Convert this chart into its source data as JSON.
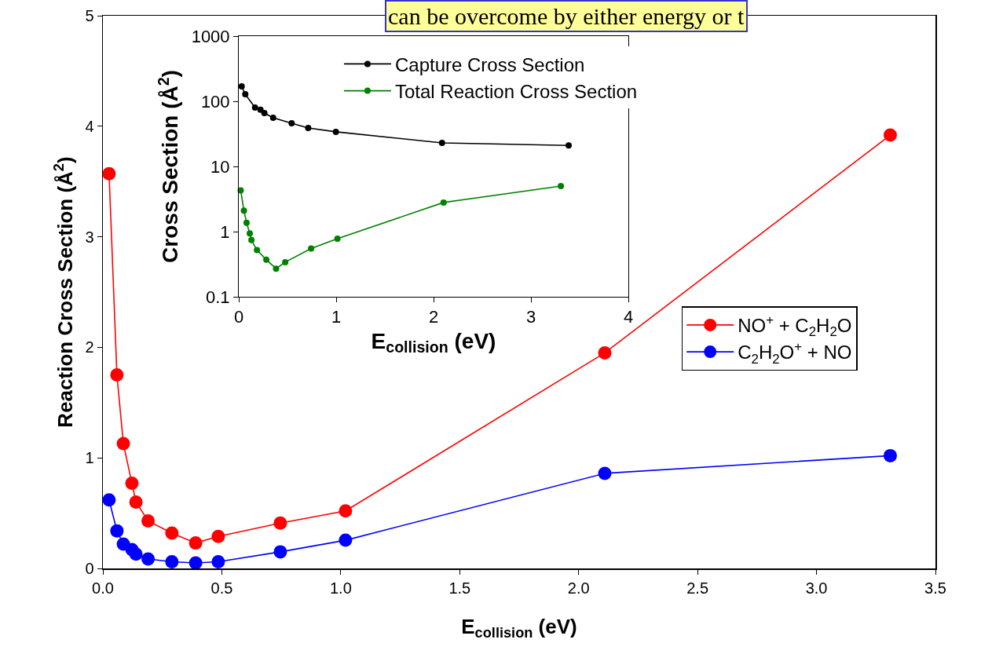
{
  "chart_data": [
    {
      "type": "line",
      "xlabel": "E$_{collision}$ (eV)",
      "ylabel": "Reaction Cross Section (Å$^{2}$)",
      "xlim": [
        0,
        3.5
      ],
      "xticks": [
        {
          "value": 0,
          "label": "0.0"
        },
        {
          "value": 0.5,
          "label": "0.5"
        },
        {
          "value": 1,
          "label": "1.0"
        },
        {
          "value": 1.5,
          "label": "1.5"
        },
        {
          "value": 2,
          "label": "2.0"
        },
        {
          "value": 2.5,
          "label": "2.5"
        },
        {
          "value": 3,
          "label": "3.0"
        },
        {
          "value": 3.5,
          "label": "3.5"
        }
      ],
      "ylim": [
        0,
        5
      ],
      "yticks": [
        0,
        1,
        2,
        3,
        4,
        5
      ],
      "grid": false,
      "legend": "right",
      "marker": "circle",
      "line_style": "solid",
      "annotations": [
        "can be overcome by either energy or t"
      ],
      "series": [
        {
          "name": "NO$^{+}$ + C$_{2}$H$_{2}$O",
          "color": "#ff0000",
          "x": [
            0.026,
            0.059,
            0.086,
            0.122,
            0.139,
            0.19,
            0.29,
            0.39,
            0.485,
            0.746,
            1.02,
            2.11,
            3.31
          ],
          "values": [
            3.57,
            1.75,
            1.13,
            0.77,
            0.6,
            0.43,
            0.32,
            0.23,
            0.29,
            0.41,
            0.52,
            1.95,
            3.92
          ]
        },
        {
          "name": "C$_{2}$H$_{2}$O$^{+}$ + NO",
          "color": "#0000ff",
          "x": [
            0.026,
            0.059,
            0.086,
            0.122,
            0.139,
            0.19,
            0.29,
            0.39,
            0.485,
            0.746,
            1.02,
            2.11,
            3.31
          ],
          "values": [
            0.62,
            0.34,
            0.22,
            0.17,
            0.13,
            0.085,
            0.06,
            0.05,
            0.06,
            0.15,
            0.255,
            0.86,
            1.02
          ]
        }
      ]
    },
    {
      "type": "line",
      "xlabel": "E$_{collision}$ (eV)",
      "ylabel": "Cross Section (Å$^{2}$)",
      "xlim": [
        0,
        4
      ],
      "xticks": [
        0,
        1,
        2,
        3,
        4
      ],
      "ylim": [
        0.1,
        1000
      ],
      "yticks": [
        0.1,
        1,
        10,
        100,
        1000
      ],
      "log": "y",
      "grid": false,
      "legend": "top right",
      "marker": "circle",
      "line_style": "solid",
      "series": [
        {
          "name": "Capture Cross Section",
          "color": "#000000",
          "x": [
            0.03,
            0.067,
            0.167,
            0.223,
            0.263,
            0.353,
            0.543,
            0.713,
            0.997,
            2.087,
            3.387
          ],
          "values": [
            169,
            128,
            80,
            74,
            66,
            56,
            46,
            39,
            34,
            23,
            21
          ]
        },
        {
          "name": "Total Reaction Cross Section",
          "color": "#008000",
          "x": [
            0.02,
            0.053,
            0.08,
            0.113,
            0.13,
            0.187,
            0.283,
            0.383,
            0.477,
            0.743,
            1.013,
            2.103,
            3.307
          ],
          "values": [
            4.3,
            2.1,
            1.37,
            0.94,
            0.74,
            0.52,
            0.37,
            0.27,
            0.34,
            0.55,
            0.78,
            2.8,
            5.0
          ]
        }
      ]
    }
  ]
}
